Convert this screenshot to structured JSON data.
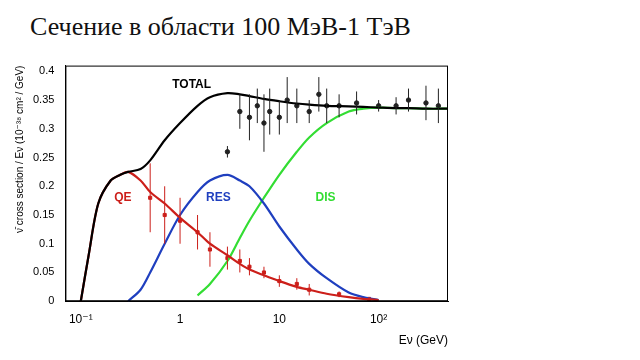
{
  "chart_data": {
    "type": "line",
    "title": "Сечение в области 100 МэВ-1 ТэВ",
    "x_label": "Eν (GeV)",
    "y_label": "ν̄ cross section / Eν (10⁻³⁸ cm² / GeV)",
    "log": "x",
    "grid": false,
    "xlim": [
      0.07,
      500
    ],
    "xticks": [
      {
        "value": 0.1,
        "label": "10⁻¹"
      },
      1,
      10,
      {
        "value": 100,
        "label": "10²"
      }
    ],
    "ylim": [
      0,
      0.41
    ],
    "yticks": [
      0,
      0.05,
      0.1,
      0.15,
      0.2,
      0.25,
      0.3,
      0.35,
      0.4
    ],
    "x": [
      0.1,
      0.12,
      0.15,
      0.2,
      0.25,
      0.3,
      0.4,
      0.5,
      0.7,
      1,
      1.5,
      2,
      3,
      4,
      5,
      7,
      10,
      15,
      20,
      30,
      50,
      70,
      100,
      150,
      200,
      300,
      500
    ],
    "series": [
      {
        "name": "TOTAL",
        "color": "#000000",
        "line_style": "solid",
        "values": [
          0,
          0.08,
          0.17,
          0.21,
          0.22,
          0.225,
          0.23,
          0.245,
          0.28,
          0.31,
          0.34,
          0.355,
          0.362,
          0.36,
          0.357,
          0.352,
          0.348,
          0.344,
          0.342,
          0.34,
          0.339,
          0.338,
          0.337,
          0.336,
          0.336,
          0.335,
          0.335
        ]
      },
      {
        "name": "QE",
        "color": "#cc1f1a",
        "line_style": "solid",
        "values": [
          0,
          0.08,
          0.17,
          0.21,
          0.22,
          0.225,
          0.21,
          0.19,
          0.17,
          0.145,
          0.12,
          0.1,
          0.08,
          0.065,
          0.055,
          0.045,
          0.035,
          0.025,
          0.02,
          0.013,
          0.007,
          0.004,
          0.002,
          null,
          null,
          null,
          null
        ]
      },
      {
        "name": "RES",
        "color": "#1f3fbf",
        "line_style": "solid",
        "values": [
          null,
          null,
          null,
          null,
          null,
          0,
          0.02,
          0.05,
          0.1,
          0.15,
          0.19,
          0.21,
          0.22,
          0.21,
          0.2,
          0.17,
          0.13,
          0.09,
          0.065,
          0.04,
          0.015,
          0.007,
          0.002,
          null,
          null,
          null,
          null
        ]
      },
      {
        "name": "DIS",
        "color": "#33dd33",
        "line_style": "solid",
        "values": [
          null,
          null,
          null,
          null,
          null,
          null,
          null,
          null,
          null,
          null,
          0.01,
          0.03,
          0.07,
          0.11,
          0.14,
          0.18,
          0.22,
          0.26,
          0.285,
          0.31,
          0.33,
          0.335,
          0.337,
          0.336,
          0.336,
          0.335,
          0.335
        ]
      },
      {
        "type": "scatter",
        "color": "#222222",
        "marker": "circle",
        "x": [
          3,
          4,
          5,
          6,
          7,
          8,
          10,
          12,
          15,
          20,
          25,
          30,
          40,
          60,
          100,
          150,
          200,
          300,
          400
        ],
        "values": [
          0.26,
          0.33,
          0.32,
          0.34,
          0.31,
          0.33,
          0.32,
          0.35,
          0.34,
          0.33,
          0.36,
          0.34,
          0.34,
          0.345,
          0.34,
          0.34,
          0.35,
          0.345,
          0.34
        ],
        "errors": [
          0.01,
          0.03,
          0.04,
          0.03,
          0.05,
          0.04,
          0.03,
          0.04,
          0.03,
          0.02,
          0.03,
          0.03,
          0.02,
          0.02,
          0.01,
          0.015,
          0.02,
          0.03,
          0.03
        ]
      },
      {
        "type": "scatter",
        "color": "#cc1f1a",
        "marker": "rect",
        "x": [
          0.5,
          0.7,
          1,
          1.5,
          2,
          3,
          4,
          5,
          7,
          10,
          15,
          20,
          40,
          80
        ],
        "values": [
          0.18,
          0.15,
          0.14,
          0.12,
          0.09,
          0.075,
          0.07,
          0.06,
          0.05,
          0.035,
          0.03,
          0.02,
          0.012,
          0.004
        ],
        "errors": [
          0.06,
          0.05,
          0.04,
          0.03,
          0.03,
          0.02,
          0.02,
          0.015,
          0.01,
          0.01,
          0.01,
          0.01,
          0.005,
          0.003
        ]
      }
    ]
  }
}
